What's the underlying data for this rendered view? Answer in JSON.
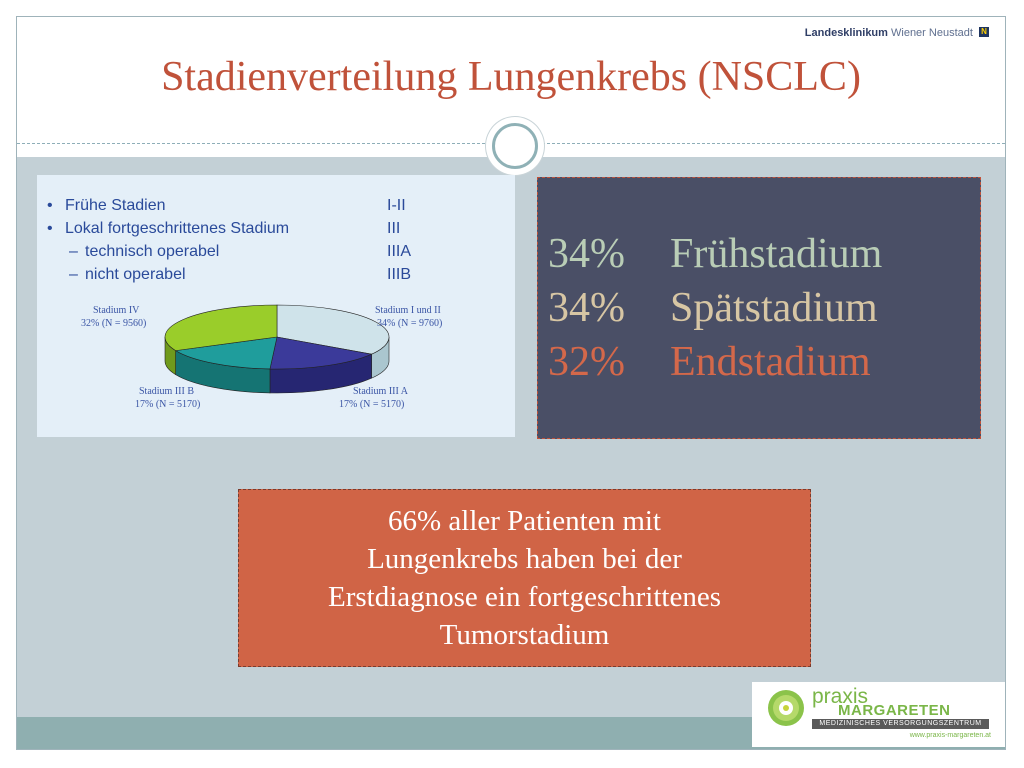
{
  "header": {
    "logo_text_bold": "Landesklinikum",
    "logo_text_light": "Wiener Neustadt",
    "logo_mark": "N",
    "title": "Stadienverteilung Lungenkrebs (NSCLC)"
  },
  "stage_list": [
    {
      "bullet": "•",
      "label": "Frühe Stadien",
      "stage": "I-II"
    },
    {
      "bullet": "•",
      "label": "Lokal fortgeschrittenes Stadium",
      "stage": "III"
    },
    {
      "bullet": "–",
      "label": "technisch operabel",
      "stage": "IIIA"
    },
    {
      "bullet": "–",
      "label": "nicht operabel",
      "stage": "IIIB"
    }
  ],
  "chart_data": {
    "type": "pie",
    "title": "",
    "categories": [
      "Stadium I und II",
      "Stadium III A",
      "Stadium III B",
      "Stadium IV"
    ],
    "values": [
      34,
      17,
      17,
      32
    ],
    "counts": [
      9760,
      5170,
      5170,
      9560
    ],
    "slice_labels": [
      {
        "name": "Stadium I und II",
        "detail": "34% (N = 9760)"
      },
      {
        "name": "Stadium III A",
        "detail": "17% (N = 5170)"
      },
      {
        "name": "Stadium III B",
        "detail": "17% (N = 5170)"
      },
      {
        "name": "Stadium IV",
        "detail": "32% (N = 9560)"
      }
    ],
    "colors": [
      "#cfe3ea",
      "#3b3a9a",
      "#1f9d9c",
      "#9acd2a"
    ],
    "side_colors": [
      "#aac6cf",
      "#262672",
      "#157473",
      "#6f9a1c"
    ],
    "style": "3d"
  },
  "stats": [
    {
      "pct": "34%",
      "label": "Frühstadium",
      "color": "#b9cdb6"
    },
    {
      "pct": "34%",
      "label": "Spätstadium",
      "color": "#d7c6a4"
    },
    {
      "pct": "32%",
      "label": "Endstadium",
      "color": "#d4684a"
    }
  ],
  "summary": {
    "lines": [
      "66% aller Patienten mit",
      "Lungenkrebs haben bei der",
      "Erstdiagnose ein fortgeschrittenes",
      "Tumorstadium"
    ]
  },
  "footer_logo": {
    "praxis": "praxis",
    "margareten": "MARGARETEN",
    "tagline": "MEDIZINISCHES VERSORGUNGSZENTRUM",
    "website": "www.praxis-margareten.at"
  }
}
